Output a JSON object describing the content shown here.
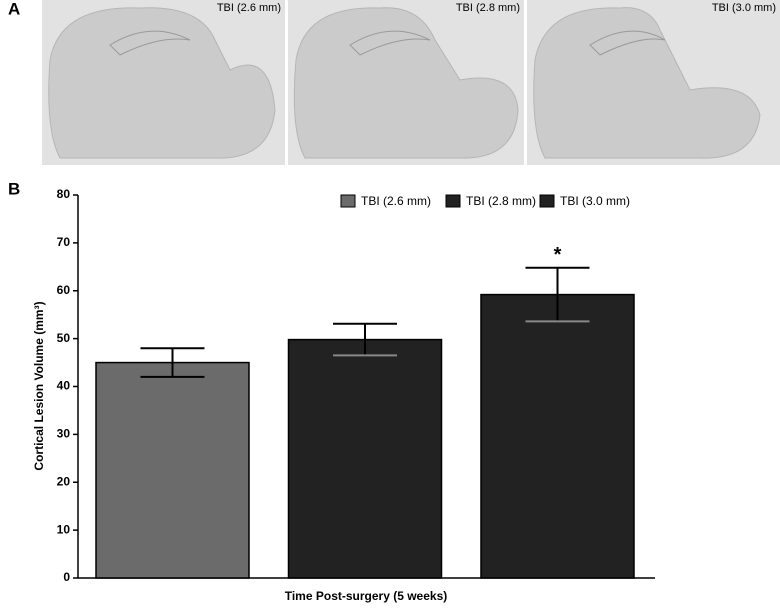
{
  "panels": {
    "a": "A",
    "b": "B"
  },
  "images": [
    {
      "label": "TBI (2.6 mm)"
    },
    {
      "label": "TBI (2.8 mm)"
    },
    {
      "label": "TBI (3.0 mm)"
    }
  ],
  "chart_data": {
    "type": "bar",
    "y_label": "Cortical Lesion Volume (mm³)",
    "x_label": "Time Post-surgery (5 weeks)",
    "series": [
      {
        "name": "TBI (2.6 mm)",
        "color": "#6b6b6b",
        "values": [
          45
        ],
        "errors": [
          3
        ]
      },
      {
        "name": "TBI (2.8 mm)",
        "color": "#222222",
        "values": [
          49.8
        ],
        "errors": [
          3.3
        ]
      },
      {
        "name": "TBI (3.0 mm)",
        "color": "#222222",
        "values": [
          59.2
        ],
        "errors": [
          5.6
        ]
      }
    ],
    "annotation": "*",
    "ylim": [
      0,
      80
    ],
    "yticks": [
      0,
      10,
      20,
      30,
      40,
      50,
      60,
      70,
      80
    ],
    "legend": "top-center",
    "grid": false
  }
}
